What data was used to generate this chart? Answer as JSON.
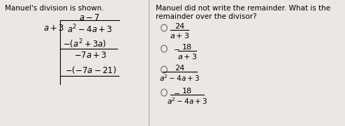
{
  "bg_color": "#ebe8e3",
  "left_title": "Manuel's division is shown.",
  "right_title_line1": "Manuel did not write the remainder. What is the",
  "right_title_line2": "remainder over the divisor?",
  "choices": [
    {
      "sign": "",
      "numerator": "24",
      "denominator": "a+3",
      "long_denom": false
    },
    {
      "sign": "-",
      "numerator": "18",
      "denominator": "a+3",
      "long_denom": false
    },
    {
      "sign": "",
      "numerator": "24",
      "denominator": "a^2-4a+3",
      "long_denom": true
    },
    {
      "sign": "-",
      "numerator": "18",
      "denominator": "a^2-4a+3",
      "long_denom": true
    }
  ],
  "font_size_title": 7.5,
  "font_size_math": 8.5,
  "font_size_choices": 8.0
}
